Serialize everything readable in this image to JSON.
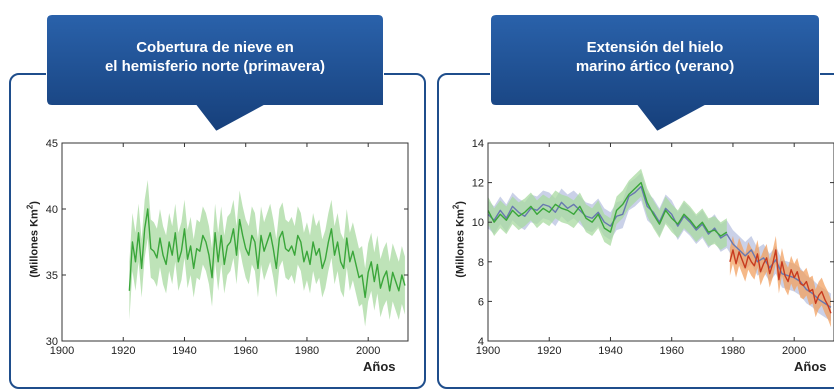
{
  "charts": [
    {
      "callout_line1": "Cobertura de nieve en",
      "callout_line2": "el hemisferio norte (primavera)",
      "ylabel": "(Millones Km",
      "ylabel_sup": "2",
      "ylabel_close": ")",
      "xlabel": "Años"
    },
    {
      "callout_line1": "Extensión del hielo",
      "callout_line2": "marino ártico (verano)",
      "ylabel": "(Millones Km",
      "ylabel_sup": "2",
      "ylabel_close": ")",
      "xlabel": "Años"
    }
  ],
  "colors": {
    "callout_blue": "#1c4f92",
    "frame_blue": "#1f4e8c",
    "green_line": "#3aa63a",
    "green_band": "#a8d9a0",
    "blue_line": "#6878b0",
    "blue_band": "#b8c2e0",
    "red_line": "#c83a1e",
    "orange_band": "#f2a060"
  },
  "chart_data": [
    {
      "type": "line",
      "title": "Cobertura de nieve en el hemisferio norte (primavera)",
      "xlabel": "Años",
      "ylabel": "(Millones Km2)",
      "xlim": [
        1900,
        2013
      ],
      "ylim": [
        30,
        45
      ],
      "xticks": [
        1900,
        1920,
        1940,
        1960,
        1980,
        2000
      ],
      "yticks": [
        30,
        35,
        40,
        45
      ],
      "grid": false,
      "series": [
        {
          "color": "#3aa63a",
          "band_color": "#a8d9a0",
          "band_halfwidth": 2.2,
          "x": [
            1922,
            1923,
            1924,
            1925,
            1926,
            1927,
            1928,
            1929,
            1930,
            1931,
            1932,
            1933,
            1934,
            1935,
            1936,
            1937,
            1938,
            1939,
            1940,
            1941,
            1942,
            1943,
            1944,
            1945,
            1946,
            1947,
            1948,
            1949,
            1950,
            1951,
            1952,
            1953,
            1954,
            1955,
            1956,
            1957,
            1958,
            1959,
            1960,
            1961,
            1962,
            1963,
            1964,
            1965,
            1966,
            1967,
            1968,
            1969,
            1970,
            1971,
            1972,
            1973,
            1974,
            1975,
            1976,
            1977,
            1978,
            1979,
            1980,
            1981,
            1982,
            1983,
            1984,
            1985,
            1986,
            1987,
            1988,
            1989,
            1990,
            1991,
            1992,
            1993,
            1994,
            1995,
            1996,
            1997,
            1998,
            1999,
            2000,
            2001,
            2002,
            2003,
            2004,
            2005,
            2006,
            2007,
            2008,
            2009,
            2010,
            2011,
            2012
          ],
          "y": [
            33.8,
            37.5,
            36.0,
            38.2,
            35.5,
            38.5,
            40.0,
            37.0,
            36.8,
            36.3,
            37.8,
            36.5,
            35.8,
            37.5,
            36.5,
            38.2,
            36.0,
            36.8,
            38.5,
            36.2,
            37.2,
            35.5,
            37.0,
            36.8,
            38.0,
            37.5,
            36.5,
            34.8,
            38.2,
            36.0,
            38.0,
            35.8,
            37.2,
            37.5,
            38.5,
            36.5,
            39.2,
            38.0,
            37.0,
            36.5,
            38.0,
            37.5,
            35.5,
            38.0,
            36.8,
            37.5,
            38.2,
            37.0,
            35.5,
            37.8,
            38.3,
            37.0,
            36.8,
            37.2,
            36.5,
            38.0,
            37.5,
            36.0,
            36.8,
            35.8,
            37.5,
            36.5,
            37.0,
            35.5,
            36.2,
            37.5,
            38.5,
            36.5,
            37.5,
            36.0,
            35.5,
            37.8,
            36.0,
            36.8,
            35.8,
            34.8,
            35.0,
            33.3,
            35.2,
            36.0,
            34.5,
            35.8,
            34.0,
            34.8,
            35.3,
            33.8,
            35.2,
            34.5,
            33.8,
            35.0,
            34.2
          ]
        }
      ]
    },
    {
      "type": "line",
      "title": "Extensión del hielo marino ártico (verano)",
      "xlabel": "Años",
      "ylabel": "(Millones Km2)",
      "xlim": [
        1900,
        2013
      ],
      "ylim": [
        4,
        14
      ],
      "xticks": [
        1900,
        1920,
        1940,
        1960,
        1980,
        2000
      ],
      "yticks": [
        4,
        6,
        8,
        10,
        12,
        14
      ],
      "grid": false,
      "series": [
        {
          "color": "#6878b0",
          "band_color": "#b8c2e0",
          "band_halfwidth": 0.7,
          "x": [
            1900,
            1902,
            1904,
            1906,
            1908,
            1910,
            1912,
            1914,
            1916,
            1918,
            1920,
            1922,
            1924,
            1926,
            1928,
            1930,
            1932,
            1934,
            1936,
            1938,
            1940,
            1942,
            1944,
            1946,
            1948,
            1950,
            1952,
            1954,
            1956,
            1958,
            1960,
            1962,
            1964,
            1966,
            1968,
            1970,
            1972,
            1974,
            1976,
            1978,
            1980,
            1982,
            1984,
            1986,
            1988,
            1990,
            1992,
            1994,
            1996,
            1998,
            2000,
            2002,
            2004,
            2006,
            2008,
            2010,
            2012
          ],
          "y": [
            10.4,
            10.1,
            10.6,
            10.2,
            10.8,
            10.5,
            10.3,
            10.7,
            10.6,
            10.9,
            10.8,
            10.5,
            11.0,
            10.7,
            10.9,
            10.6,
            10.3,
            10.2,
            10.5,
            10.0,
            9.8,
            10.3,
            10.4,
            11.3,
            11.5,
            11.8,
            10.8,
            10.5,
            10.0,
            10.7,
            10.4,
            9.8,
            10.3,
            10.0,
            9.6,
            9.9,
            9.4,
            9.7,
            9.2,
            9.4,
            8.9,
            8.6,
            8.3,
            8.6,
            8.0,
            8.2,
            7.7,
            8.1,
            7.4,
            7.3,
            7.2,
            7.0,
            6.6,
            6.4,
            6.1,
            5.9,
            5.7
          ]
        },
        {
          "color": "#3aa63a",
          "band_color": "#a8d9a0",
          "band_halfwidth": 0.7,
          "x": [
            1900,
            1902,
            1904,
            1906,
            1908,
            1910,
            1912,
            1914,
            1916,
            1918,
            1920,
            1922,
            1924,
            1926,
            1928,
            1930,
            1932,
            1934,
            1936,
            1938,
            1940,
            1942,
            1944,
            1946,
            1948,
            1950,
            1952,
            1954,
            1956,
            1958,
            1960,
            1962,
            1964,
            1966,
            1968,
            1970,
            1972,
            1974,
            1976,
            1978
          ],
          "y": [
            10.6,
            10.0,
            10.4,
            10.1,
            10.6,
            10.3,
            10.5,
            10.8,
            10.4,
            10.7,
            10.5,
            10.9,
            10.7,
            10.6,
            10.4,
            10.8,
            10.2,
            10.0,
            10.4,
            9.7,
            9.5,
            10.6,
            10.9,
            11.4,
            11.7,
            12.0,
            11.0,
            10.4,
            9.9,
            10.6,
            10.2,
            9.9,
            10.4,
            10.1,
            9.7,
            10.0,
            9.5,
            9.6,
            9.3,
            9.5
          ]
        },
        {
          "color": "#c83a1e",
          "band_color": "#f2a060",
          "band_halfwidth": 0.7,
          "x": [
            1979,
            1980,
            1981,
            1982,
            1983,
            1984,
            1985,
            1986,
            1987,
            1988,
            1989,
            1990,
            1991,
            1992,
            1993,
            1994,
            1995,
            1996,
            1997,
            1998,
            1999,
            2000,
            2001,
            2002,
            2003,
            2004,
            2005,
            2006,
            2007,
            2008,
            2009,
            2010,
            2011,
            2012
          ],
          "y": [
            8.0,
            8.6,
            7.9,
            8.5,
            8.1,
            7.7,
            8.3,
            8.0,
            7.8,
            8.4,
            7.5,
            7.9,
            8.2,
            7.4,
            7.9,
            8.6,
            7.1,
            8.0,
            7.3,
            7.0,
            7.6,
            7.2,
            7.5,
            6.9,
            6.8,
            7.0,
            6.5,
            6.6,
            5.9,
            6.3,
            6.5,
            6.1,
            5.8,
            5.4
          ]
        }
      ]
    }
  ]
}
